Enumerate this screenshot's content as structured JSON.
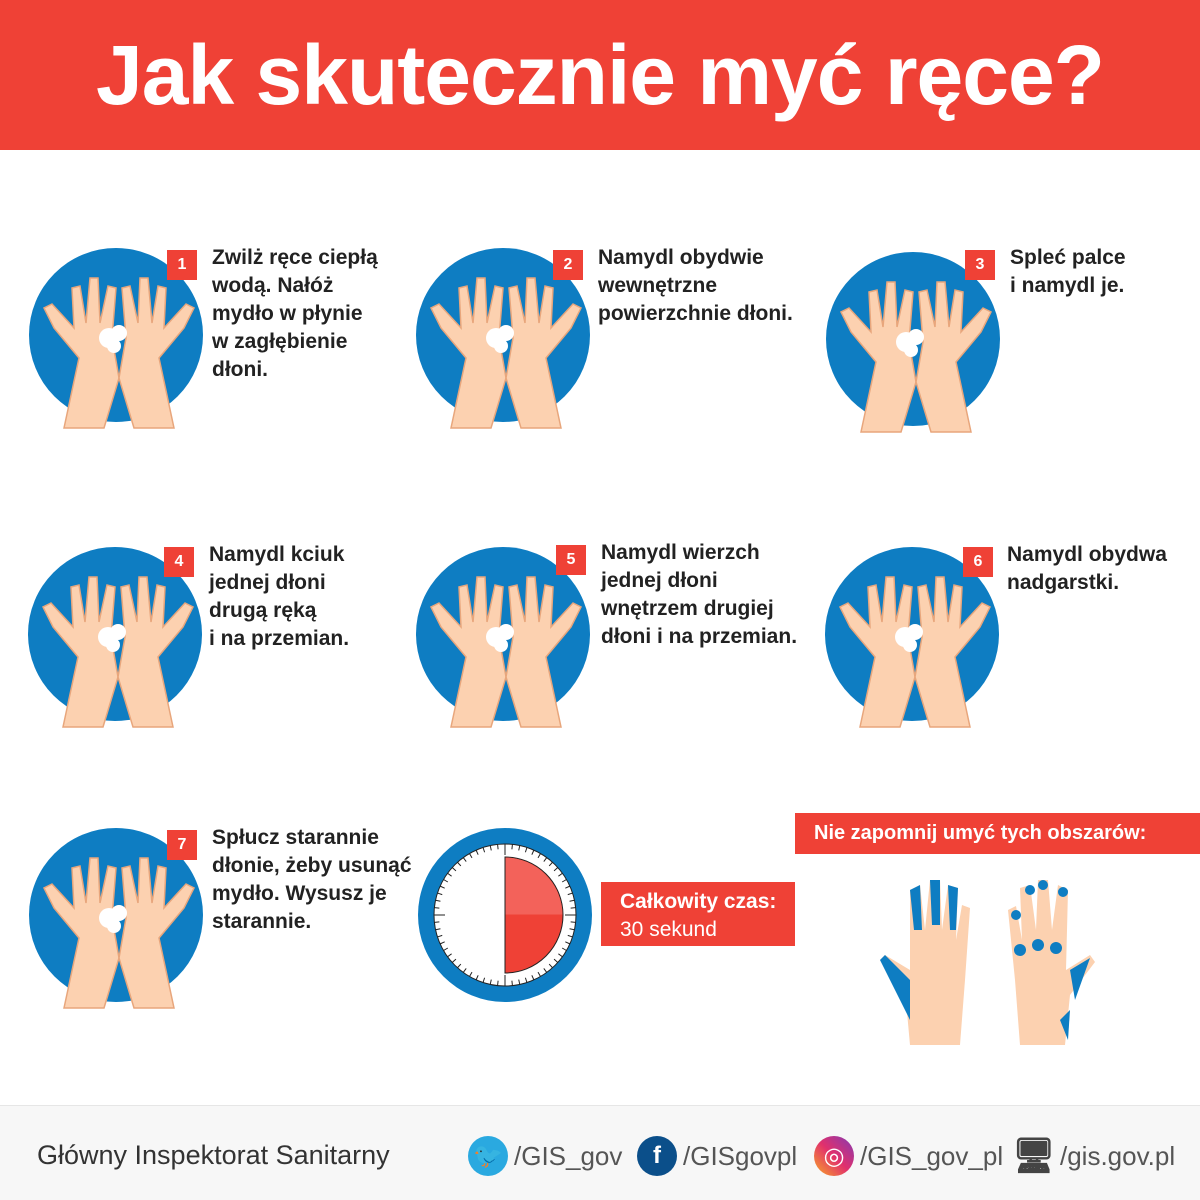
{
  "header": {
    "title": "Jak skutecznie myć ręce?"
  },
  "steps": [
    {
      "number": "1",
      "text": "Zwilż ręce ciepłą\nwodą. Nałóż\nmydło w płynie\nw zagłębienie\ndłoni."
    },
    {
      "number": "2",
      "text": "Namydl obydwie\nwewnętrzne\npowierzchnie dłoni."
    },
    {
      "number": "3",
      "text": "Spleć palce\ni namydl je."
    },
    {
      "number": "4",
      "text": "Namydl kciuk\njednej dłoni\ndrugą ręką\ni na przemian."
    },
    {
      "number": "5",
      "text": "Namydl wierzch\njednej dłoni\nwnętrzem drugiej\ndłoni i na przemian."
    },
    {
      "number": "6",
      "text": "Namydl obydwa\nnadgarstki."
    },
    {
      "number": "7",
      "text": "Spłucz starannie\ndłonie, żeby usunąć\nmydło. Wysusz je\nstarannie."
    }
  ],
  "timer": {
    "label": "Całkowity czas:",
    "value": "30 sekund",
    "filled_fraction": 0.5
  },
  "reminder": {
    "title": "Nie zapomnij umyć tych obszarów:"
  },
  "footer": {
    "organization": "Główny Inspektorat Sanitarny",
    "links": [
      {
        "icon": "twitter-icon",
        "label": "/GIS_gov",
        "color": "#1da1f2"
      },
      {
        "icon": "facebook-icon",
        "label": "/GISgovpl",
        "color": "#0b4f8a"
      },
      {
        "icon": "instagram-icon",
        "label": "/GIS_gov_pl",
        "color": "#e1306c"
      },
      {
        "icon": "monitor-icon",
        "label": "/gis.gov.pl",
        "color": "#444444"
      }
    ]
  },
  "colors": {
    "red": "#ef4136",
    "blue": "#0e7dc2",
    "skin": "#fcd1b0"
  }
}
